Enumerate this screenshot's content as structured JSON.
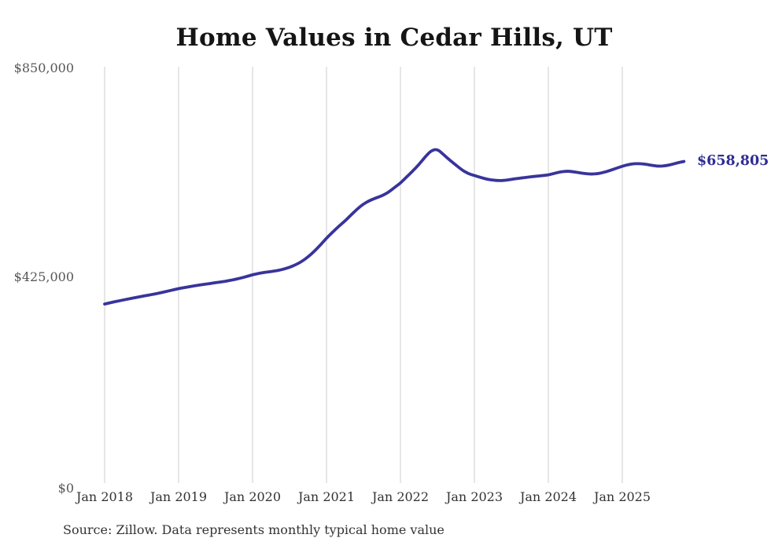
{
  "chart": {
    "title": "Home Values in Cedar Hills, UT",
    "end_label": "$658,805",
    "source_note": "Source: Zillow. Data represents monthly typical home value",
    "y_tick_labels": [
      "$850,000",
      "$425,000",
      "$0"
    ],
    "x_tick_labels": [
      "Jan 2018",
      "Jan 2019",
      "Jan 2020",
      "Jan 2021",
      "Jan 2022",
      "Jan 2023",
      "Jan 2024",
      "Jan 2025"
    ]
  },
  "colors": {
    "line": "#38349c",
    "end_label": "#2f2c94",
    "gridline": "#cccccc",
    "title_text": "#151515",
    "y_tick_text": "#565656",
    "x_tick_text": "#323232",
    "source_text": "#333333",
    "background": "#ffffff"
  },
  "chart_data": {
    "type": "line",
    "title": "Home Values in Cedar Hills, UT",
    "xlabel": "",
    "ylabel": "",
    "ylim": [
      0,
      850000
    ],
    "y_ticks": [
      0,
      425000,
      850000
    ],
    "y_tick_labels": [
      "$0",
      "$425,000",
      "$850,000"
    ],
    "x_tick_labels": [
      "Jan 2018",
      "Jan 2019",
      "Jan 2020",
      "Jan 2021",
      "Jan 2022",
      "Jan 2023",
      "Jan 2024",
      "Jan 2025"
    ],
    "grid": "vertical gridlines at each January, no horizontal gridlines",
    "legend": "none",
    "x_start": "Jan 2018",
    "x_end": "Nov 2025",
    "x_cadence": "monthly",
    "end_value": 658805,
    "end_value_label": "$658,805",
    "series": [
      {
        "name": "Typical home value (USD)",
        "values": [
          371000,
          373800,
          376500,
          379000,
          381500,
          384000,
          386300,
          388700,
          391000,
          393500,
          396300,
          399200,
          402000,
          404300,
          406500,
          408500,
          410400,
          412200,
          414000,
          415800,
          417800,
          420200,
          423100,
          426400,
          430000,
          432800,
          435000,
          436600,
          438400,
          441200,
          445000,
          450200,
          457000,
          466000,
          477000,
          490000,
          504000,
          516000,
          528000,
          538500,
          551000,
          563000,
          573000,
          580000,
          585000,
          589500,
          596000,
          606000,
          615000,
          627500,
          639500,
          652500,
          668000,
          681000,
          683800,
          672500,
          661500,
          651500,
          641500,
          634000,
          630500,
          626500,
          623000,
          621000,
          620000,
          620800,
          622500,
          624500,
          626000,
          627500,
          629000,
          630200,
          631500,
          635000,
          637800,
          639200,
          638200,
          636200,
          634200,
          633200,
          634200,
          636800,
          640500,
          645000,
          649000,
          652500,
          654500,
          654200,
          652800,
          650500,
          649000,
          650200,
          652800,
          656000,
          658805
        ]
      }
    ]
  }
}
